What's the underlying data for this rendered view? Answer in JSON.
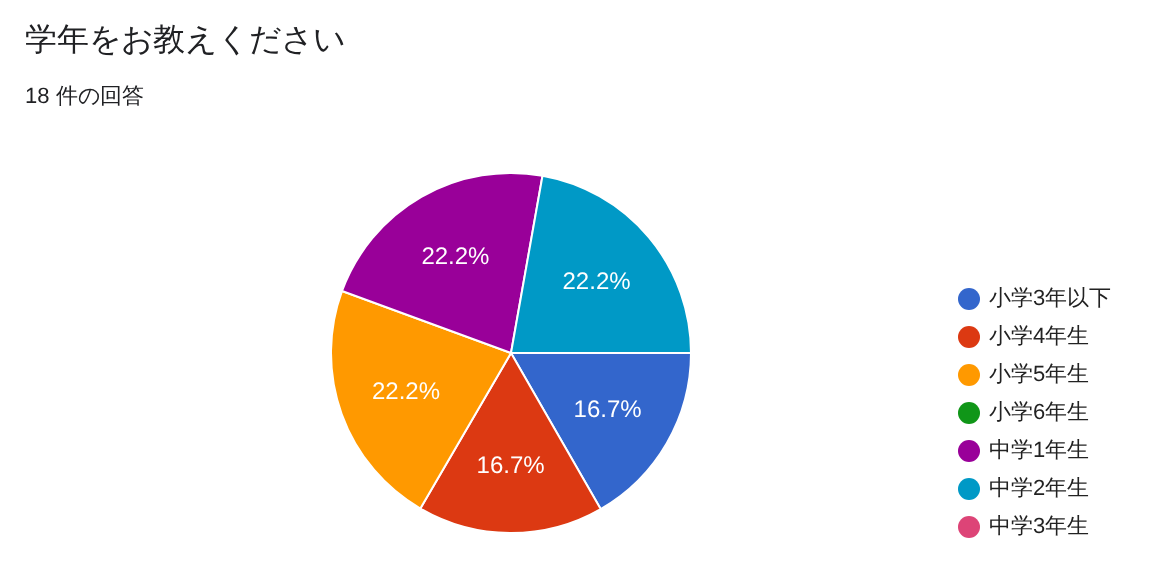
{
  "chart_data": {
    "type": "pie",
    "title": "学年をお教えください",
    "subtitle": "18 件の回答",
    "categories": [
      "小学3年以下",
      "小学4年生",
      "小学5年生",
      "小学6年生",
      "中学1年生",
      "中学2年生",
      "中学3年生"
    ],
    "values": [
      16.7,
      16.7,
      22.2,
      0,
      22.2,
      22.2,
      0
    ],
    "colors": [
      "#3366cc",
      "#dc3912",
      "#ff9900",
      "#109618",
      "#990099",
      "#0099c6",
      "#dd4477"
    ],
    "value_labels": [
      "16.7%",
      "16.7%",
      "22.2%",
      null,
      "22.2%",
      "22.2%",
      null
    ],
    "legend": "right"
  }
}
